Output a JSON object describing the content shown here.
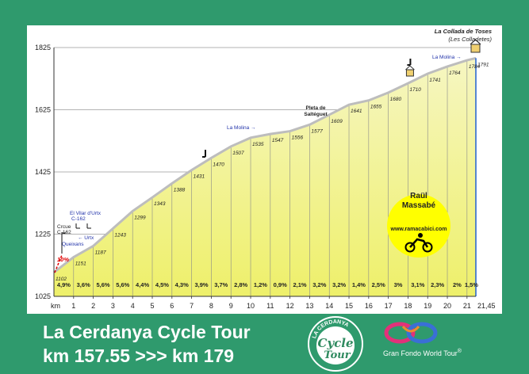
{
  "chart_data": {
    "type": "area",
    "km_ticks": [
      "1",
      "2",
      "3",
      "4",
      "5",
      "6",
      "7",
      "8",
      "9",
      "10",
      "11",
      "12",
      "13",
      "14",
      "15",
      "16",
      "17",
      "18",
      "19",
      "20",
      "21"
    ],
    "km_label": "km",
    "km_end_label": "21,45",
    "x_km": [
      0,
      1,
      2,
      3,
      4,
      5,
      6,
      7,
      8,
      9,
      10,
      11,
      12,
      13,
      14,
      15,
      16,
      17,
      18,
      19,
      20,
      21,
      21.45
    ],
    "elevation_labels": [
      "1102",
      "1151",
      "1187",
      "1243",
      "1299",
      "1343",
      "1388",
      "1431",
      "1470",
      "1507",
      "1535",
      "1547",
      "1556",
      "1577",
      "1609",
      "1641",
      "1655",
      "1680",
      "1710",
      "1741",
      "1764",
      "1784",
      "1791"
    ],
    "elevations": [
      1102,
      1151,
      1187,
      1243,
      1299,
      1343,
      1388,
      1431,
      1470,
      1507,
      1535,
      1547,
      1556,
      1577,
      1609,
      1641,
      1655,
      1680,
      1710,
      1741,
      1764,
      1784,
      1791
    ],
    "gradients": [
      "4,9%",
      "3,6%",
      "5,6%",
      "5,6%",
      "4,4%",
      "4,5%",
      "4,3%",
      "3,9%",
      "3,7%",
      "2,8%",
      "1,2%",
      "0,9%",
      "2,1%",
      "3,2%",
      "3,2%",
      "1,4%",
      "2,5%",
      "3%",
      "3,1%",
      "2,3%",
      "2%",
      "1,5%"
    ],
    "y_ticks": [
      "1825",
      "1625",
      "1425",
      "1225",
      "1025"
    ],
    "y_tick_values": [
      1825,
      1625,
      1425,
      1225,
      1025
    ],
    "ylim": [
      1025,
      1825
    ],
    "xlim": [
      0,
      21.45
    ],
    "annotations": {
      "summit_name": "La Collada de Toses",
      "summit_sub": "(Les Colladetes)",
      "la_molina_top": "La Molina",
      "la_molina_mid": "La Molina",
      "pleta_1": "Pleta de",
      "pleta_2": "Saltéguet",
      "crcue_1": "Crcue",
      "crcue_2": "C-162",
      "vilar_1": "El Vilar d'Urtx",
      "vilar_2": "C-162",
      "urtx": "Urtx",
      "queixans": "Queixans",
      "max_grade": "10%"
    },
    "author_1": "Raül",
    "author_2": "Massabé",
    "author_site": "www.ramacabici.com",
    "colors": {
      "background": "#2f9a6d",
      "fill_top": "#f6f6c2",
      "fill_bottom": "#eef06a",
      "profile_line": "#bdbdbd",
      "badge": "#ffff00",
      "blue_label": "#2233aa",
      "red_grade": "#e00000"
    }
  },
  "footer": {
    "title": "La Cerdanya Cycle Tour",
    "subtitle": "km 157.55 >>> km 179",
    "gran_fondo": "Gran Fondo World Tour",
    "logo_arc_text": "LA CERDANYA",
    "logo_word_1": "Cycle",
    "logo_word_2": "Tour"
  }
}
